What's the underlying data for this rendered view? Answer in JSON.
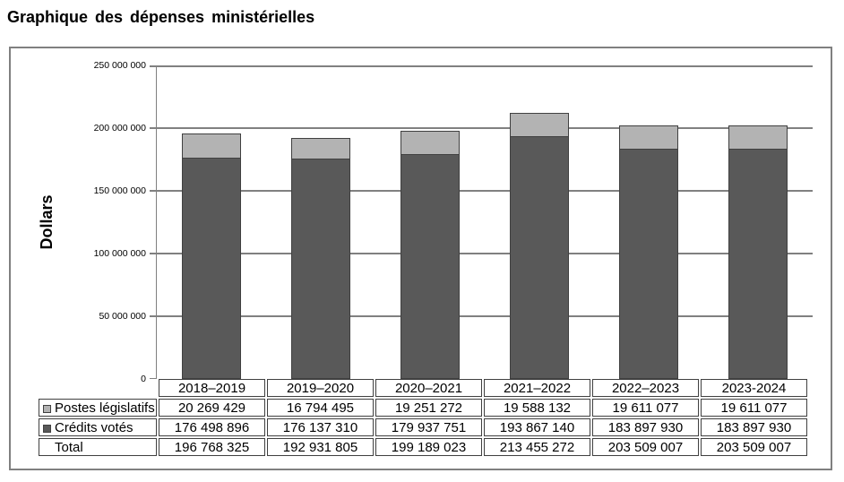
{
  "page": {
    "title": "Graphique des dépenses ministérielles"
  },
  "chart": {
    "y_axis_label": "Dollars",
    "y_ticks": [
      "250 000 000",
      "200 000 000",
      "150 000 000",
      "100 000 000",
      "50 000 000",
      "0"
    ],
    "colors": {
      "grid": "#808080",
      "frame": "#808080",
      "bar_border": "#404040",
      "credits_votes_fill": "#595959",
      "postes_legislatifs_fill": "#b3b3b3",
      "table_border": "#404040"
    }
  },
  "chart_data": {
    "type": "bar",
    "stacked": true,
    "title": "Graphique des dépenses ministérielles",
    "categories": [
      "2018–2019",
      "2019–2020",
      "2020–2021",
      "2021–2022",
      "2022–2023",
      "2023-2024"
    ],
    "series": [
      {
        "name": "Crédits votés",
        "color": "#595959",
        "values": [
          176498896,
          176137310,
          179937751,
          193867140,
          183897930,
          183897930
        ]
      },
      {
        "name": "Postes législatifs",
        "color": "#b3b3b3",
        "values": [
          20269429,
          16794495,
          19251272,
          19588132,
          19611077,
          19611077
        ]
      }
    ],
    "totals": [
      196768325,
      192931805,
      199189023,
      213455272,
      203509007,
      203509007
    ],
    "xlabel": "",
    "ylabel": "Dollars",
    "ylim": [
      0,
      250000000
    ],
    "grid": true,
    "legend_position": "table-rows-left"
  },
  "table": {
    "header": [
      "",
      "2018–2019",
      "2019–2020",
      "2020–2021",
      "2021–2022",
      "2022–2023",
      "2023-2024"
    ],
    "rows": [
      {
        "label": "Postes législatifs",
        "marker": "#b3b3b3",
        "values": [
          "20 269 429",
          "16 794 495",
          "19 251 272",
          "19 588 132",
          "19 611 077",
          "19 611 077"
        ]
      },
      {
        "label": "Crédits votés",
        "marker": "#595959",
        "values": [
          "176 498 896",
          "176 137 310",
          "179 937 751",
          "193 867 140",
          "183 897 930",
          "183 897 930"
        ]
      },
      {
        "label": "Total",
        "marker": null,
        "values": [
          "196 768 325",
          "192 931 805",
          "199 189 023",
          "213 455 272",
          "203 509 007",
          "203 509 007"
        ]
      }
    ]
  }
}
